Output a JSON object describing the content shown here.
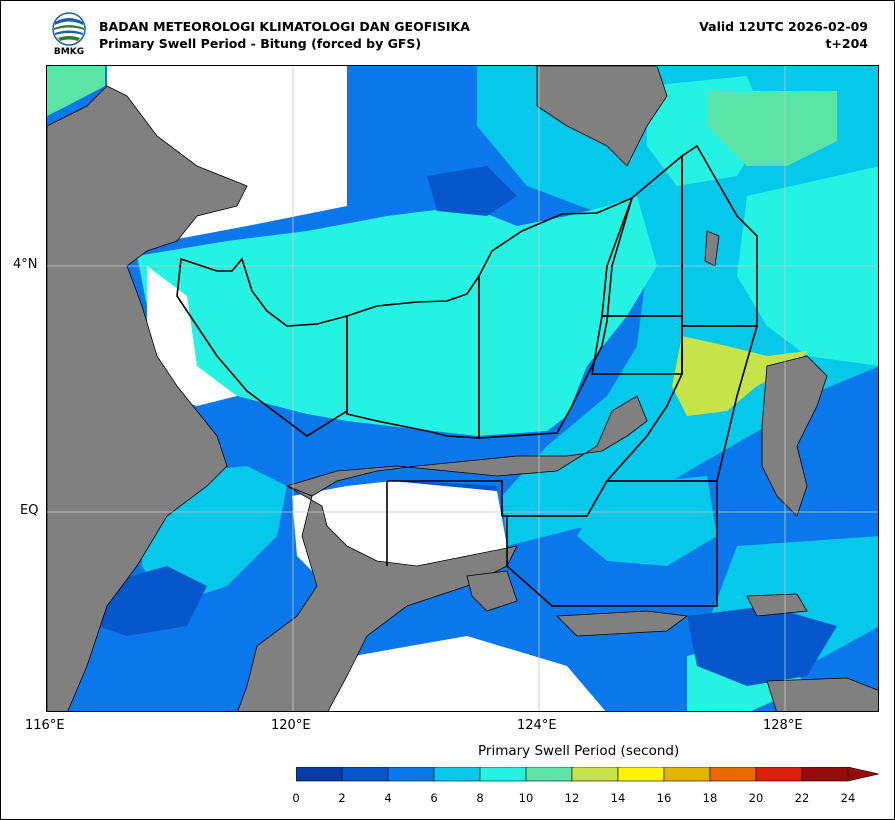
{
  "header": {
    "agency": "BADAN METEOROLOGI KLIMATOLOGI DAN GEOFISIKA",
    "subtitle": "Primary Swell Period - Bitung (forced by GFS)",
    "valid": "Valid 12UTC 2026-02-09",
    "lead": "t+204",
    "logo_text": "BMKG"
  },
  "axes": {
    "lat_labels": [
      "4°N",
      "EQ"
    ],
    "lon_labels": [
      "116°E",
      "120°E",
      "124°E",
      "128°E"
    ]
  },
  "colorbar": {
    "title": "Primary Swell Period (second)",
    "ticks": [
      "0",
      "2",
      "4",
      "6",
      "8",
      "10",
      "12",
      "14",
      "16",
      "18",
      "20",
      "22",
      "24"
    ],
    "colors": [
      "#0a3aa6",
      "#0656cc",
      "#0a78ea",
      "#05c8ea",
      "#25f2e3",
      "#5ce3a6",
      "#c7e34a",
      "#fff500",
      "#e2b600",
      "#ea6a00",
      "#dc1f0c",
      "#970b0b"
    ]
  },
  "map_colors": {
    "land": "#808080",
    "no_data": "#ffffff",
    "p0_2": "#0a3aa6",
    "p2_4": "#0656cc",
    "p4_6": "#0a78ea",
    "p6_8": "#05c8ea",
    "p8_10": "#25f2e3",
    "p10_12": "#5ce3a6",
    "p12_14": "#c7e34a"
  }
}
